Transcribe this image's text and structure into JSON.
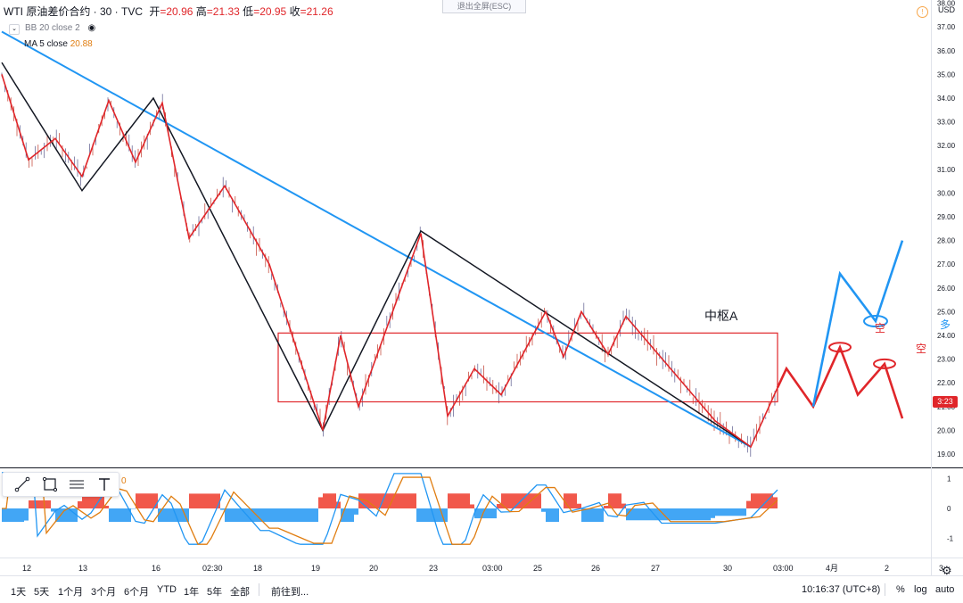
{
  "header": {
    "symbol": "WTI 原油差价合约 · 30 · TVC",
    "open_label": "开",
    "open": "=20.96",
    "high_label": "高",
    "high": "=21.33",
    "low_label": "低",
    "low": "=20.95",
    "close_label": "收",
    "close": "=21.26"
  },
  "indicators": {
    "bb": "BB 20 close 2",
    "ma_name": "MA 5 close",
    "ma_value": "20.88",
    "macd_value": "0"
  },
  "exit_fullscreen": "退出全屏(ESC)",
  "currency": "USD",
  "last_price_tag": "3:23",
  "annotations": {
    "zone_label": "中枢A",
    "short_label_1": "空",
    "short_label_2": "空",
    "long_label": "多"
  },
  "bottom_bar": {
    "ranges": [
      "1天",
      "5天",
      "1个月",
      "3个月",
      "6个月",
      "YTD",
      "1年",
      "5年",
      "全部"
    ],
    "goto": "前往到...",
    "clock": "10:16:37 (UTC+8)",
    "percent": "%",
    "log": "log",
    "auto": "auto"
  },
  "colors": {
    "candle_up": "#5a5a8c",
    "candle_down": "#c0392b",
    "trend_blue": "#2196f3",
    "zigzag_red": "#e0262a",
    "zigzag_black": "#131722",
    "macd_orange": "#e07d10",
    "macd_blue": "#2196f3"
  },
  "chart_data": {
    "type": "line",
    "price_axis": {
      "ticks": [
        "38.00",
        "37.00",
        "36.00",
        "35.00",
        "34.00",
        "33.00",
        "32.00",
        "31.00",
        "30.00",
        "29.00",
        "28.00",
        "27.00",
        "26.00",
        "25.00",
        "24.00",
        "23.00",
        "22.00",
        "21.00",
        "20.00",
        "19.00"
      ],
      "ylim": [
        18.7,
        38.2
      ]
    },
    "macd_axis": {
      "ticks": [
        "1",
        "0",
        "-1"
      ],
      "ylim": [
        -1.4,
        1.4
      ]
    },
    "time_axis": {
      "labels": [
        "12",
        "13",
        "16",
        "02:30",
        "18",
        "19",
        "20",
        "23",
        "03:00",
        "25",
        "26",
        "27",
        "30",
        "03:00",
        "4月",
        "2",
        "3"
      ]
    },
    "zigzag_red": [
      {
        "t": 0,
        "p": 35.0
      },
      {
        "t": 3,
        "p": 31.4
      },
      {
        "t": 6,
        "p": 32.3
      },
      {
        "t": 9,
        "p": 30.7
      },
      {
        "t": 12,
        "p": 33.9
      },
      {
        "t": 15,
        "p": 31.3
      },
      {
        "t": 18,
        "p": 33.8
      },
      {
        "t": 21,
        "p": 28.1
      },
      {
        "t": 25,
        "p": 30.3
      },
      {
        "t": 30,
        "p": 27.0
      },
      {
        "t": 36,
        "p": 20.0
      },
      {
        "t": 38,
        "p": 24.0
      },
      {
        "t": 40,
        "p": 21.0
      },
      {
        "t": 47,
        "p": 28.3
      },
      {
        "t": 50,
        "p": 20.6
      },
      {
        "t": 53,
        "p": 22.6
      },
      {
        "t": 56,
        "p": 21.5
      },
      {
        "t": 61,
        "p": 25.0
      },
      {
        "t": 63,
        "p": 23.1
      },
      {
        "t": 65,
        "p": 25.0
      },
      {
        "t": 68,
        "p": 23.2
      },
      {
        "t": 70,
        "p": 24.8
      },
      {
        "t": 75,
        "p": 22.6
      },
      {
        "t": 80,
        "p": 20.4
      },
      {
        "t": 84,
        "p": 19.3
      },
      {
        "t": 87,
        "p": 21.8
      }
    ],
    "zigzag_black": [
      {
        "t": 0,
        "p": 35.5
      },
      {
        "t": 9,
        "p": 30.1
      },
      {
        "t": 17,
        "p": 34.0
      },
      {
        "t": 36,
        "p": 20.0
      },
      {
        "t": 47,
        "p": 28.4
      },
      {
        "t": 84,
        "p": 19.3
      }
    ],
    "trendline": [
      {
        "t": 0,
        "p": 36.8
      },
      {
        "t": 84,
        "p": 19.3
      }
    ],
    "zone_A": {
      "t_start": 31,
      "t_end": 87,
      "low": 21.2,
      "high": 24.1
    },
    "projection_red": [
      {
        "t": 87,
        "p": 21.8
      },
      {
        "t": 88,
        "p": 22.6
      },
      {
        "t": 91,
        "p": 21.0
      },
      {
        "t": 94,
        "p": 23.5
      },
      {
        "t": 96,
        "p": 21.5
      },
      {
        "t": 99,
        "p": 22.8
      },
      {
        "t": 101,
        "p": 20.5
      }
    ],
    "projection_blue": [
      {
        "t": 91,
        "p": 21.0
      },
      {
        "t": 94,
        "p": 26.6
      },
      {
        "t": 98,
        "p": 24.6
      },
      {
        "t": 101,
        "p": 28.0
      }
    ]
  }
}
